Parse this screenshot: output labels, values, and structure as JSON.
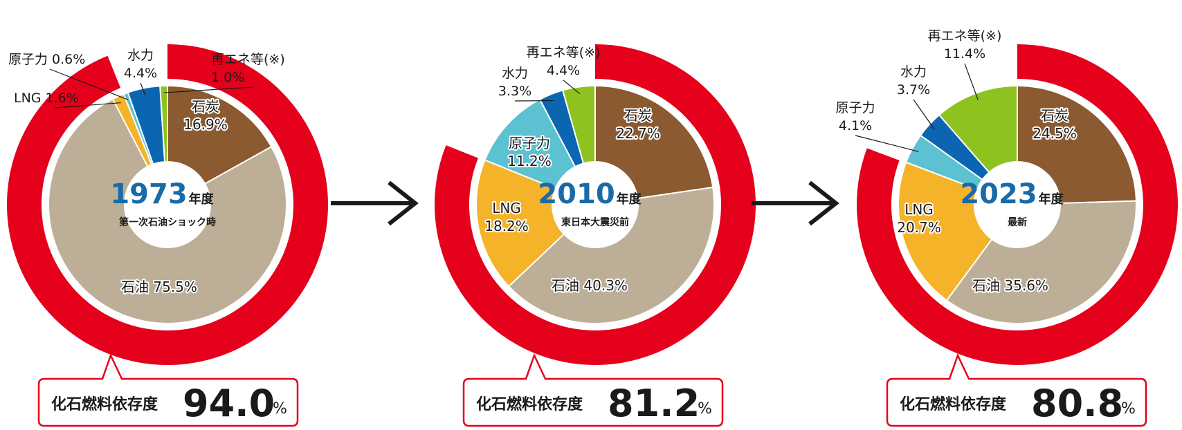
{
  "colors": {
    "fossil_ring": "#e5001b",
    "石炭": "#8b5a31",
    "石油": "#bdae97",
    "LNG": "#f4b329",
    "原子力": "#5cc2d1",
    "水力": "#0b65b0",
    "再エネ等(※)": "#8dc21f",
    "arrow": "#1a1a1a",
    "year": "#1a6aa8"
  },
  "chart_data": [
    {
      "type": "pie",
      "year": "1973",
      "year_suffix": "年度",
      "subtitle": "第一次石油ショック時",
      "slices": [
        {
          "name": "石炭",
          "value": 16.9,
          "text": "16.9%"
        },
        {
          "name": "石油",
          "value": 75.5,
          "text": "石油 75.5%"
        },
        {
          "name": "LNG",
          "value": 1.6,
          "text": "LNG 1.6%"
        },
        {
          "name": "原子力",
          "value": 0.6,
          "text": "原子力 0.6%"
        },
        {
          "name": "水力",
          "value": 4.4,
          "text": "4.4%"
        },
        {
          "name": "再エネ等(※)",
          "value": 1.0,
          "text": "1.0%"
        }
      ],
      "fossil_dependency": {
        "label": "化石燃料依存度",
        "value": "94.0",
        "unit": "%"
      }
    },
    {
      "type": "pie",
      "year": "2010",
      "year_suffix": "年度",
      "subtitle": "東日本大震災前",
      "slices": [
        {
          "name": "石炭",
          "value": 22.7,
          "text": "22.7%"
        },
        {
          "name": "石油",
          "value": 40.3,
          "text": "石油 40.3%"
        },
        {
          "name": "LNG",
          "value": 18.2,
          "text": "18.2%"
        },
        {
          "name": "原子力",
          "value": 11.2,
          "text": "11.2%"
        },
        {
          "name": "水力",
          "value": 3.3,
          "text": "3.3%"
        },
        {
          "name": "再エネ等(※)",
          "value": 4.4,
          "text": "4.4%"
        }
      ],
      "fossil_dependency": {
        "label": "化石燃料依存度",
        "value": "81.2",
        "unit": "%"
      }
    },
    {
      "type": "pie",
      "year": "2023",
      "year_suffix": "年度",
      "subtitle": "最新",
      "slices": [
        {
          "name": "石炭",
          "value": 24.5,
          "text": "24.5%"
        },
        {
          "name": "石油",
          "value": 35.6,
          "text": "石油 35.6%"
        },
        {
          "name": "LNG",
          "value": 20.7,
          "text": "20.7%"
        },
        {
          "name": "原子力",
          "value": 4.1,
          "text": "4.1%"
        },
        {
          "name": "水力",
          "value": 3.7,
          "text": "3.7%"
        },
        {
          "name": "再エネ等(※)",
          "value": 11.4,
          "text": "11.4%"
        }
      ],
      "fossil_dependency": {
        "label": "化石燃料依存度",
        "value": "80.8",
        "unit": "%"
      }
    }
  ]
}
